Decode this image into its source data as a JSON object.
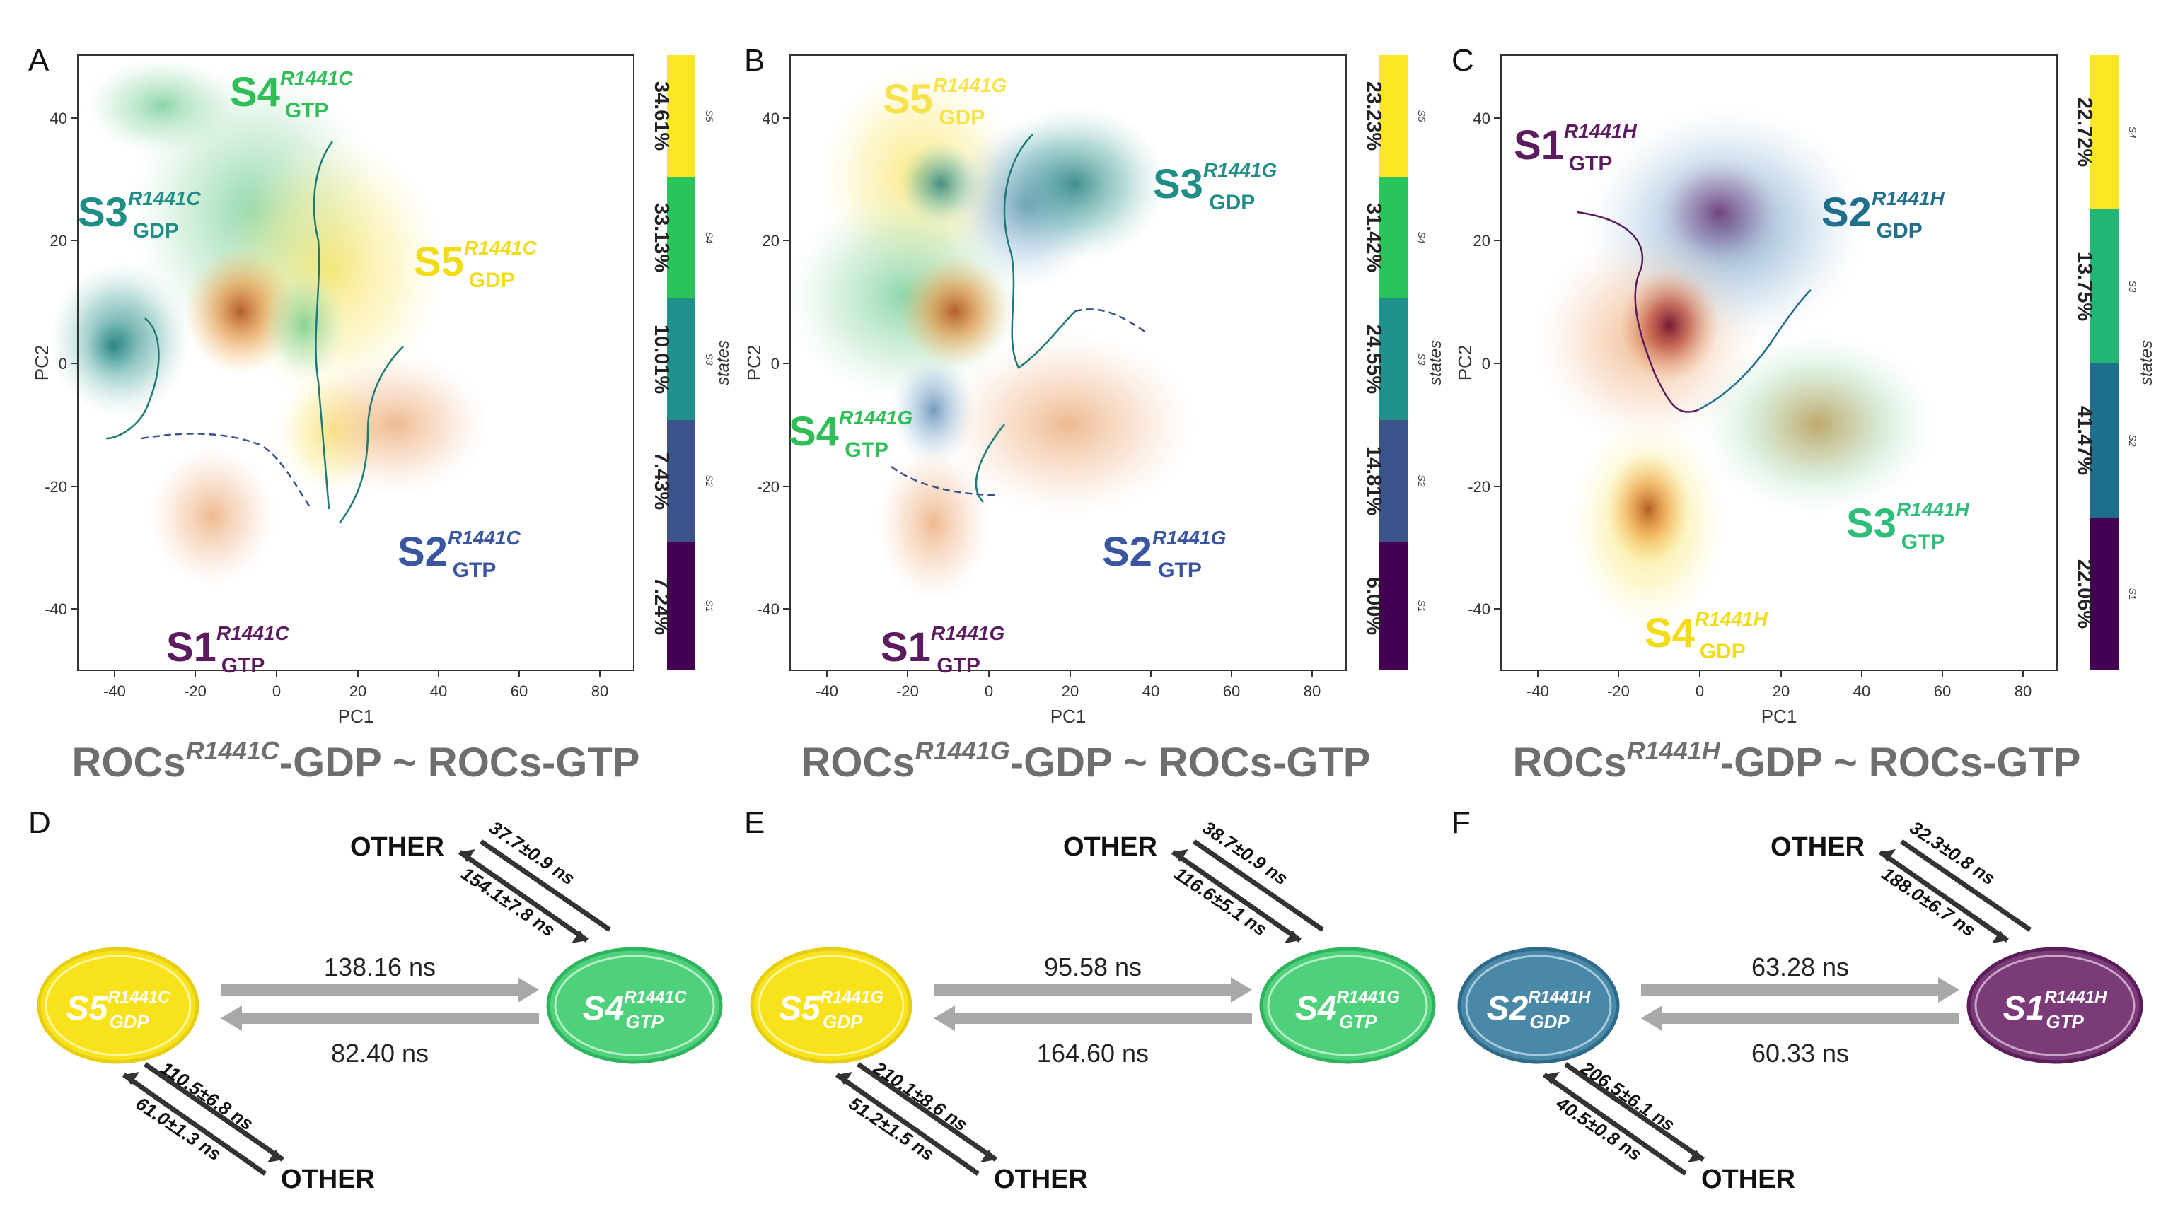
{
  "panels": [
    {
      "letter": "A",
      "ticks_x": [
        "-40",
        "-20",
        "0",
        "20",
        "40",
        "60",
        "80"
      ],
      "ticks_y": [
        "40",
        "20",
        "0",
        "-20",
        "-40"
      ],
      "x_label": "PC1",
      "y_label": "PC2",
      "legend_title": "states",
      "caption": {
        "pre": "ROCs",
        "sup": "R1441C",
        "post": "-GDP ~ ROCs-GTP"
      },
      "state_labels": [
        {
          "s": "S4",
          "m": "R1441C",
          "n": "GTP"
        },
        {
          "s": "S3",
          "m": "R1441C",
          "n": "GDP"
        },
        {
          "s": "S5",
          "m": "R1441C",
          "n": "GDP"
        },
        {
          "s": "S2",
          "m": "R1441C",
          "n": "GTP"
        },
        {
          "s": "S1",
          "m": "R1441C",
          "n": "GTP"
        }
      ],
      "bar": [
        {
          "pct": "34.61%",
          "key": "S5",
          "color": "#FDE725"
        },
        {
          "pct": "33.13%",
          "key": "S4",
          "color": "#29C45A"
        },
        {
          "pct": "10.01%",
          "key": "S3",
          "color": "#21918C"
        },
        {
          "pct": "7.43%",
          "key": "S2",
          "color": "#3B528B"
        },
        {
          "pct": "7.24%",
          "key": "S1",
          "color": "#440154"
        }
      ]
    },
    {
      "letter": "B",
      "ticks_x": [
        "-40",
        "-20",
        "0",
        "20",
        "40",
        "60",
        "80"
      ],
      "ticks_y": [
        "40",
        "20",
        "0",
        "-20",
        "-40"
      ],
      "x_label": "PC1",
      "y_label": "PC2",
      "legend_title": "states",
      "caption": {
        "pre": "ROCs",
        "sup": "R1441G",
        "post": "-GDP ~ ROCs-GTP"
      },
      "state_labels": [
        {
          "s": "S5",
          "m": "R1441G",
          "n": "GDP"
        },
        {
          "s": "S3",
          "m": "R1441G",
          "n": "GDP"
        },
        {
          "s": "S4",
          "m": "R1441G",
          "n": "GTP"
        },
        {
          "s": "S2",
          "m": "R1441G",
          "n": "GTP"
        },
        {
          "s": "S1",
          "m": "R1441G",
          "n": "GTP"
        }
      ],
      "bar": [
        {
          "pct": "23.23%",
          "key": "S5",
          "color": "#FDE725"
        },
        {
          "pct": "31.42%",
          "key": "S4",
          "color": "#29C45A"
        },
        {
          "pct": "24.55%",
          "key": "S3",
          "color": "#21918C"
        },
        {
          "pct": "14.81%",
          "key": "S2",
          "color": "#3B528B"
        },
        {
          "pct": "6.00%",
          "key": "S1",
          "color": "#440154"
        }
      ]
    },
    {
      "letter": "C",
      "ticks_x": [
        "-40",
        "-20",
        "0",
        "20",
        "40",
        "60",
        "80"
      ],
      "ticks_y": [
        "40",
        "20",
        "0",
        "-20",
        "-40"
      ],
      "x_label": "PC1",
      "y_label": "PC2",
      "legend_title": "states",
      "caption": {
        "pre": "ROCs",
        "sup": "R1441H",
        "post": "-GDP ~ ROCs-GTP"
      },
      "state_labels": [
        {
          "s": "S1",
          "m": "R1441H",
          "n": "GTP"
        },
        {
          "s": "S2",
          "m": "R1441H",
          "n": "GDP"
        },
        {
          "s": "S3",
          "m": "R1441H",
          "n": "GTP"
        },
        {
          "s": "S4",
          "m": "R1441H",
          "n": "GDP"
        }
      ],
      "bar": [
        {
          "pct": "22.72%",
          "key": "S4",
          "color": "#FDE725"
        },
        {
          "pct": "13.75%",
          "key": "S3",
          "color": "#22B573"
        },
        {
          "pct": "41.47%",
          "key": "S2",
          "color": "#1F6E8C"
        },
        {
          "pct": "22.06%",
          "key": "S1",
          "color": "#440154"
        }
      ]
    }
  ],
  "kinetics": [
    {
      "letter": "D",
      "left": {
        "s": "S5",
        "m": "R1441C",
        "n": "GDP",
        "fill": "#F7E21B",
        "stroke": "#E6CF10"
      },
      "right": {
        "s": "S4",
        "m": "R1441C",
        "n": "GTP",
        "fill": "#4FD17B",
        "stroke": "#2FB35E"
      },
      "fwd": "138.16 ns",
      "bwd": "82.40 ns",
      "top_other": "OTHER",
      "top_in": "37.7±0.9 ns",
      "top_out": "154.1±7.8 ns",
      "bot_other": "OTHER",
      "bot_in": "110.5±6.8 ns",
      "bot_out": "61.0±1.3 ns"
    },
    {
      "letter": "E",
      "left": {
        "s": "S5",
        "m": "R1441G",
        "n": "GDP",
        "fill": "#F7E21B",
        "stroke": "#E6CF10"
      },
      "right": {
        "s": "S4",
        "m": "R1441G",
        "n": "GTP",
        "fill": "#4FD17B",
        "stroke": "#2FB35E"
      },
      "fwd": "95.58 ns",
      "bwd": "164.60 ns",
      "top_other": "OTHER",
      "top_in": "38.7±0.9 ns",
      "top_out": "116.6±5.1 ns",
      "bot_other": "OTHER",
      "bot_in": "210.1±8.6 ns",
      "bot_out": "51.2±1.5 ns"
    },
    {
      "letter": "F",
      "left": {
        "s": "S2",
        "m": "R1441H",
        "n": "GDP",
        "fill": "#4A88A8",
        "stroke": "#2F6A8A"
      },
      "right": {
        "s": "S1",
        "m": "R1441H",
        "n": "GTP",
        "fill": "#7A3B78",
        "stroke": "#5A1E58"
      },
      "fwd": "63.28 ns",
      "bwd": "60.33 ns",
      "top_other": "OTHER",
      "top_in": "32.3±0.8 ns",
      "top_out": "188.0±6.7 ns",
      "bot_other": "OTHER",
      "bot_in": "206.5±6.1 ns",
      "bot_out": "40.5±0.8 ns"
    }
  ]
}
